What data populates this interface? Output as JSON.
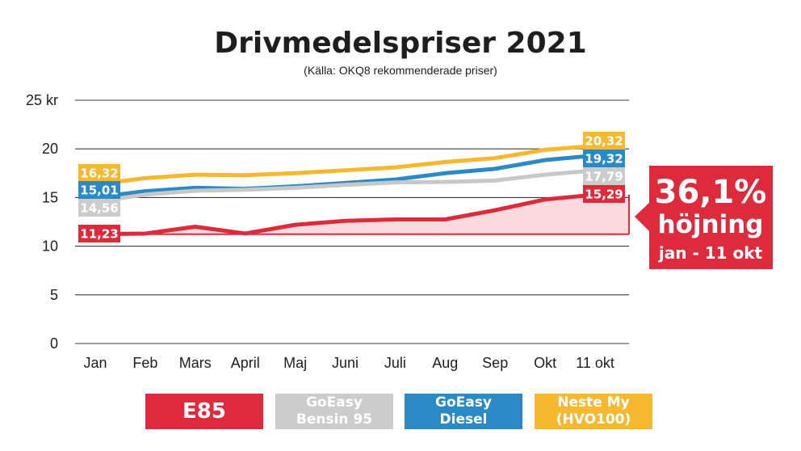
{
  "chart_data": {
    "type": "line",
    "title": "Drivmedelspriser 2021",
    "subtitle": "(Källa: OKQ8 rekommenderade priser)",
    "categories": [
      "Jan",
      "Feb",
      "Mars",
      "April",
      "Maj",
      "Juni",
      "Juli",
      "Aug",
      "Sep",
      "Okt",
      "11 okt"
    ],
    "y_ticks": [
      "25 kr",
      "20",
      "15",
      "10",
      "5",
      "0"
    ],
    "ylim": [
      0,
      25
    ],
    "grid": true,
    "series": [
      {
        "name": "Neste My (HVO100)",
        "color": "#f5b82e",
        "values": [
          16.32,
          17.0,
          17.35,
          17.3,
          17.5,
          17.8,
          18.1,
          18.65,
          19.05,
          19.9,
          20.32
        ],
        "start_label": "16,32",
        "end_label": "20,32"
      },
      {
        "name": "GoEasy Diesel",
        "color": "#2a8ac6",
        "values": [
          15.01,
          15.65,
          16.0,
          15.9,
          16.15,
          16.5,
          16.85,
          17.5,
          17.95,
          18.85,
          19.32
        ],
        "start_label": "15,01",
        "end_label": "19,32"
      },
      {
        "name": "GoEasy Bensin 95",
        "color": "#c8c8c8",
        "values": [
          14.56,
          15.3,
          15.7,
          15.8,
          16.0,
          16.3,
          16.55,
          16.6,
          16.75,
          17.35,
          17.79
        ],
        "start_label": "14,56",
        "end_label": "17,79"
      },
      {
        "name": "E85",
        "color": "#dd2a3d",
        "values": [
          11.23,
          11.3,
          12.0,
          11.3,
          12.2,
          12.6,
          12.75,
          12.75,
          13.7,
          14.8,
          15.29
        ],
        "start_label": "11,23",
        "end_label": "15,29"
      }
    ],
    "callout": {
      "line1": "36,1%",
      "line2": "höjning",
      "line3": "jan - 11 okt",
      "color": "#dd2a3d"
    }
  },
  "legend": [
    {
      "label": "E85",
      "color": "#dd2a3d"
    },
    {
      "label": "GoEasy\nBensin 95",
      "color": "#cccccc"
    },
    {
      "label": "GoEasy\nDiesel",
      "color": "#2a8ac6"
    },
    {
      "label": "Neste My\n(HVO100)",
      "color": "#f5b82e"
    }
  ]
}
